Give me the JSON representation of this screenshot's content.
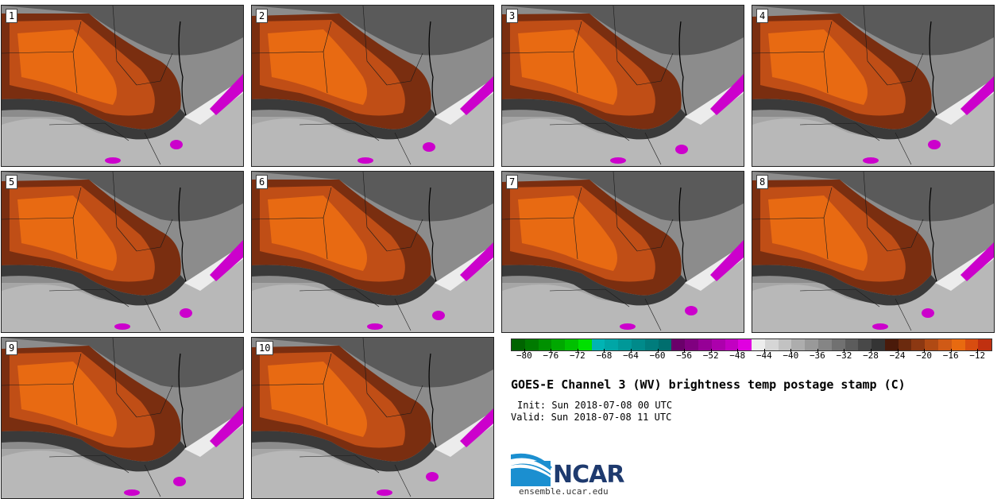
{
  "panels": [
    {
      "label": "1"
    },
    {
      "label": "2"
    },
    {
      "label": "3"
    },
    {
      "label": "4"
    },
    {
      "label": "5"
    },
    {
      "label": "6"
    },
    {
      "label": "7"
    },
    {
      "label": "8"
    },
    {
      "label": "9"
    },
    {
      "label": "10"
    }
  ],
  "colorbar": {
    "colors": [
      "#006400",
      "#007a00",
      "#009000",
      "#00a800",
      "#00c000",
      "#00e000",
      "#00b4b4",
      "#00a6a6",
      "#009898",
      "#008a8a",
      "#007c7c",
      "#006e6e",
      "#6a006a",
      "#800080",
      "#960096",
      "#ac00ac",
      "#c200c2",
      "#e000e0",
      "#ededed",
      "#d6d6d6",
      "#c2c2c2",
      "#adadad",
      "#999999",
      "#858585",
      "#717171",
      "#5c5c5c",
      "#484848",
      "#343434",
      "#4a1a0a",
      "#6b2a0e",
      "#8c3812",
      "#b04a14",
      "#d05a16",
      "#e86a10",
      "#d84d10",
      "#c03010"
    ],
    "ticks": [
      "−80",
      "−76",
      "−72",
      "−68",
      "−64",
      "−60",
      "−56",
      "−52",
      "−48",
      "−44",
      "−40",
      "−36",
      "−32",
      "−28",
      "−24",
      "−20",
      "−16",
      "−12"
    ]
  },
  "title": "GOES-E Channel 3 (WV) brightness temp postage stamp (C)",
  "init": "Init: Sun 2018-07-08 00 UTC",
  "valid": "Valid: Sun 2018-07-08 11 UTC",
  "logo": {
    "text": "NCAR",
    "color": "#1e3a6e",
    "swoosh": "#1b8fd0"
  },
  "website": "ensemble.ucar.edu"
}
